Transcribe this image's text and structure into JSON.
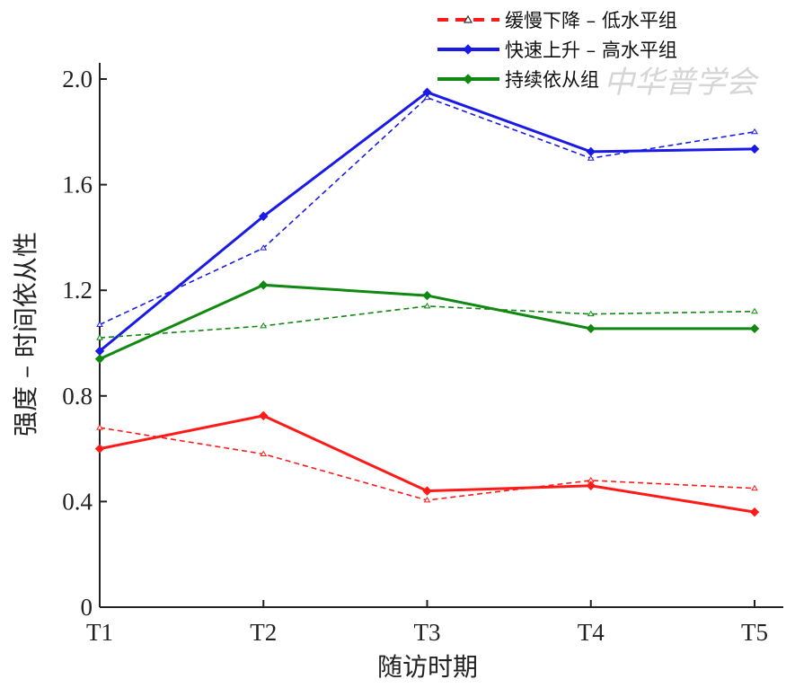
{
  "chart_data": {
    "type": "line",
    "categories": [
      "T1",
      "T2",
      "T3",
      "T4",
      "T5"
    ],
    "xlabel": "随访时期",
    "ylabel": "强度 – 时间依从性",
    "ylim": [
      0,
      2.05
    ],
    "yticks": [
      0,
      0.4,
      0.8,
      1.2,
      1.6,
      2.0
    ],
    "ytick_labels": [
      "0",
      "0.4",
      "0.8",
      "1.2",
      "1.6",
      "2.0"
    ],
    "grid": false,
    "legend_position": "top-right",
    "series": [
      {
        "name": "缓慢下降 – 低水平组",
        "color": "#ff1a1a",
        "observed": [
          0.6,
          0.725,
          0.44,
          0.46,
          0.36
        ],
        "estimated": [
          0.68,
          0.58,
          0.405,
          0.48,
          0.45
        ]
      },
      {
        "name": "快速上升 – 高水平组",
        "color": "#1a1ae6",
        "observed": [
          0.97,
          1.48,
          1.95,
          1.725,
          1.735
        ],
        "estimated": [
          1.07,
          1.36,
          1.93,
          1.7,
          1.8
        ]
      },
      {
        "name": "持续依从组",
        "color": "#118811",
        "observed": [
          0.94,
          1.22,
          1.18,
          1.055,
          1.055
        ],
        "estimated": [
          1.02,
          1.065,
          1.14,
          1.11,
          1.12
        ]
      }
    ],
    "watermark": "中华普学会"
  }
}
